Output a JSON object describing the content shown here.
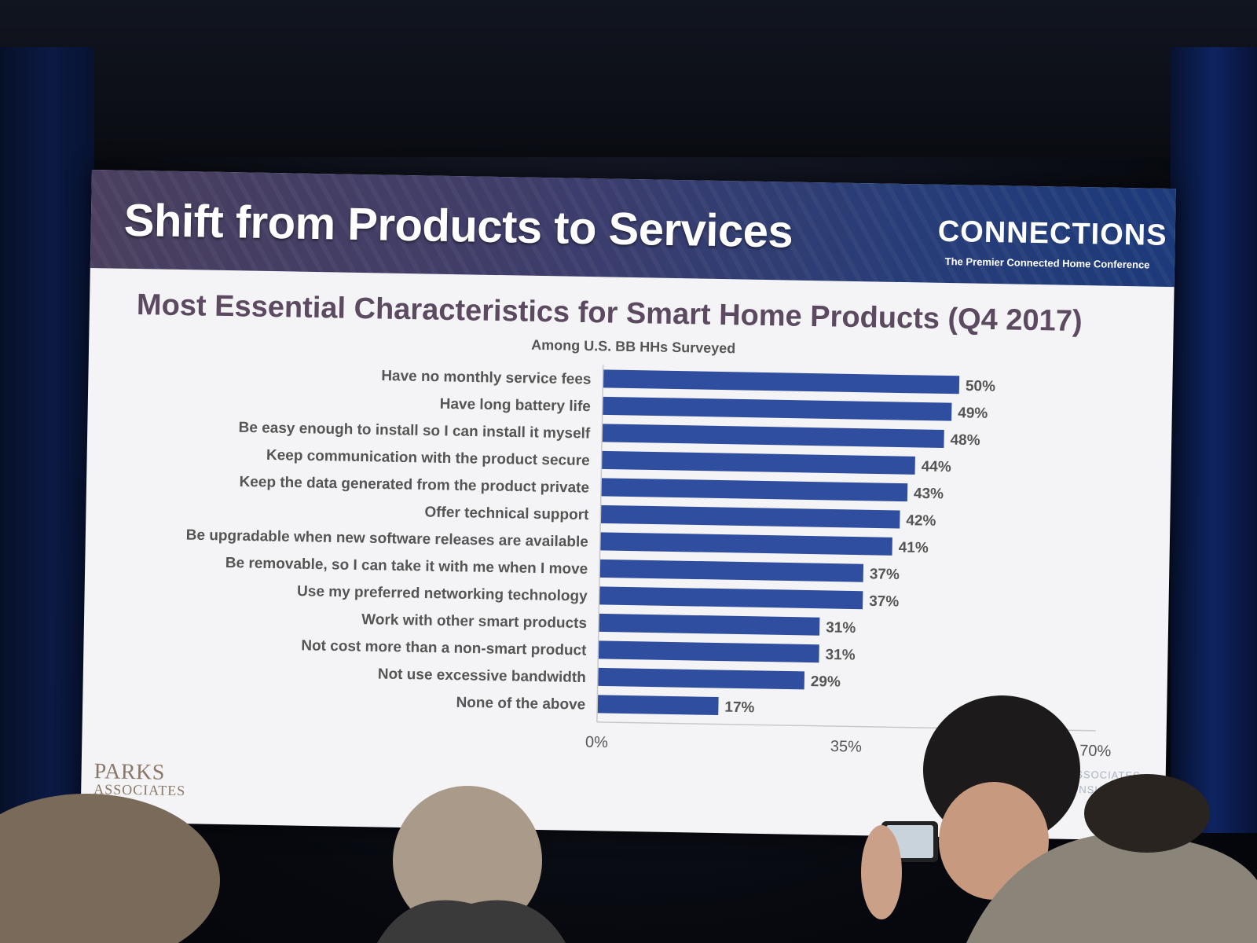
{
  "slide": {
    "title": "Shift from Products to Services",
    "brand_name": "CONNECTIONS",
    "brand_tagline": "The Premier Connected Home Conference",
    "footer_logo_line1": "PARKS",
    "footer_logo_line2": "ASSOCIATES",
    "footer_right_line1": "KS ASSOCIATES",
    "footer_right_line2": "ECTIONSUS.COM"
  },
  "colors": {
    "bar": "#2f4e9f",
    "slide_background": "#f4f4f6",
    "title_purple": "#5b4a60"
  },
  "chart_data": {
    "type": "bar",
    "orientation": "horizontal",
    "title": "Most Essential Characteristics for Smart Home Products (Q4 2017)",
    "subtitle": "Among U.S. BB HHs Surveyed",
    "categories": [
      "Have no monthly service fees",
      "Have long battery life",
      "Be easy enough to install so I can install it myself",
      "Keep communication with the product secure",
      "Keep the data generated from the product private",
      "Offer technical support",
      "Be upgradable when new software releases are available",
      "Be removable, so I can take it with me when I move",
      "Use my preferred networking technology",
      "Work with other smart products",
      "Not cost more than a non-smart product",
      "Not use excessive bandwidth",
      "None of the above"
    ],
    "values": [
      50,
      49,
      48,
      44,
      43,
      42,
      41,
      37,
      37,
      31,
      31,
      29,
      17
    ],
    "value_labels": [
      "50%",
      "49%",
      "48%",
      "44%",
      "43%",
      "42%",
      "41%",
      "37%",
      "37%",
      "31%",
      "31%",
      "29%",
      "17%"
    ],
    "xlim": [
      0,
      70
    ],
    "x_ticks": [
      0,
      35,
      70
    ],
    "x_tick_labels": [
      "0%",
      "35%",
      "70%"
    ],
    "xlabel": "",
    "ylabel": "",
    "grid": false,
    "legend": "none"
  }
}
